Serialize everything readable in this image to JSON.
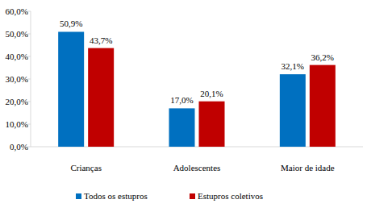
{
  "chart_data": {
    "type": "bar",
    "categories": [
      "Crianças",
      "Adolescentes",
      "Maior de idade"
    ],
    "series": [
      {
        "name": "Todos os estupros",
        "color": "#0070c0",
        "values": [
          50.9,
          17.0,
          32.1
        ],
        "value_labels": [
          "50,9%",
          "17,0%",
          "32,1%"
        ]
      },
      {
        "name": "Estupros coletivos",
        "color": "#c00000",
        "values": [
          43.7,
          20.1,
          36.2
        ],
        "value_labels": [
          "43,7%",
          "20,1%",
          "36,2%"
        ]
      }
    ],
    "ylim": [
      0,
      60
    ],
    "yticks": [
      {
        "value": 0,
        "label": "0,0%"
      },
      {
        "value": 10,
        "label": "10,0%"
      },
      {
        "value": 20,
        "label": "20,0%"
      },
      {
        "value": 30,
        "label": "30,0%"
      },
      {
        "value": 40,
        "label": "40,0%"
      },
      {
        "value": 50,
        "label": "50,0%"
      },
      {
        "value": 60,
        "label": "60,0%"
      }
    ],
    "grid": false,
    "legend": "bottom",
    "data_labels": true
  }
}
